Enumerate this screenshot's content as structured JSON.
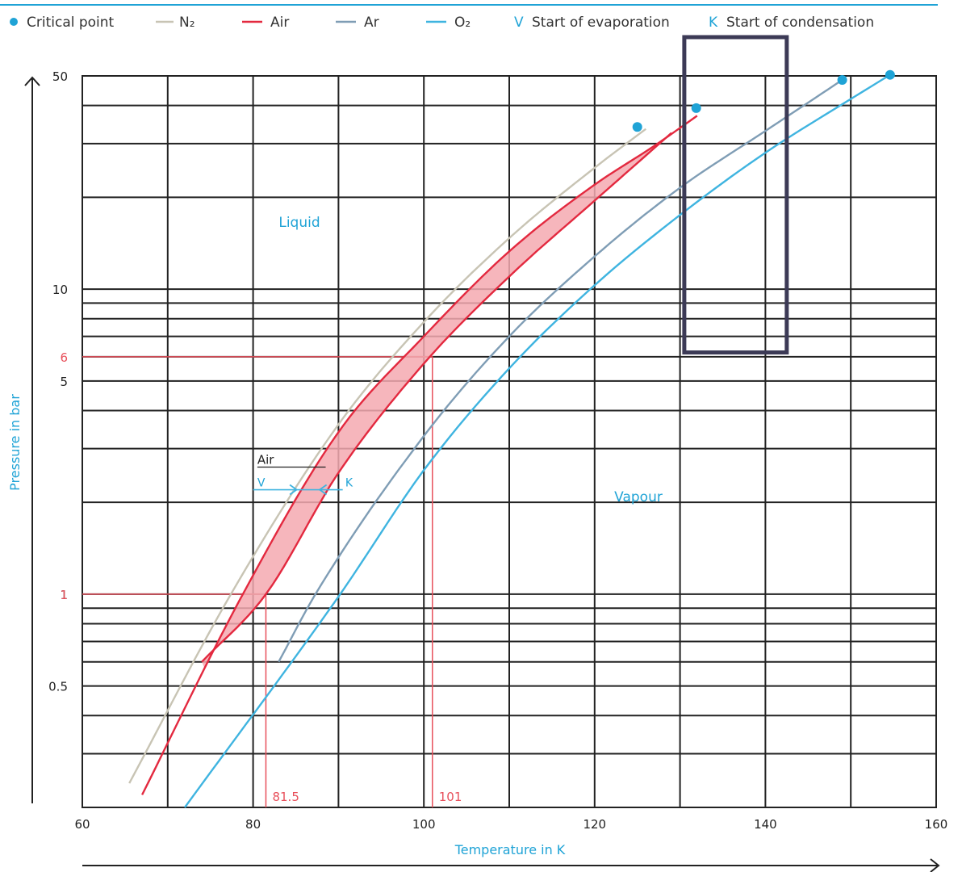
{
  "chart_data": {
    "type": "line",
    "xlabel": "Temperature in K",
    "ylabel": "Pressure in bar",
    "xlim": [
      60,
      160
    ],
    "ylim": [
      0.2,
      50
    ],
    "y_scale": "log",
    "x_ticks": [
      "60",
      "80",
      "100",
      "120",
      "140",
      "160"
    ],
    "y_ticks": [
      "50",
      "10",
      "5",
      "1",
      "0.5"
    ],
    "red_y_ticks": [
      "6",
      "1"
    ],
    "grid": true,
    "legend_position": "top",
    "legend": {
      "critical_point": "Critical point",
      "n2": "N₂",
      "air": "Air",
      "ar": "Ar",
      "o2": "O₂",
      "evap_symbol": "V",
      "evap_label": "Start of evaporation",
      "cond_symbol": "K",
      "cond_label": "Start of condensation"
    },
    "colors": {
      "n2": "#c8c4b4",
      "air": "#e3293f",
      "air_band": "#f4a9b0",
      "ar": "#7f9db5",
      "o2": "#3fb4e0",
      "critical_point": "#1fa3d6",
      "marker": "#e8505b",
      "highlight_box": "#3c3a56"
    },
    "series": [
      {
        "name": "N₂",
        "points": [
          [
            65.5,
            0.24
          ],
          [
            77.4,
            1.0
          ],
          [
            90,
            3.6
          ],
          [
            100,
            7.8
          ],
          [
            110,
            14.7
          ],
          [
            120,
            25
          ],
          [
            126,
            33.5
          ]
        ]
      },
      {
        "name": "Air",
        "points": [
          [
            67,
            0.22
          ],
          [
            78.8,
            1.0
          ],
          [
            90,
            3.4
          ],
          [
            100,
            7.0
          ],
          [
            110,
            13.3
          ],
          [
            120,
            22
          ],
          [
            127,
            29.5
          ],
          [
            132,
            37.0
          ]
        ]
      },
      {
        "name": "Air",
        "points": [
          [
            74,
            0.6
          ],
          [
            81.5,
            1.0
          ],
          [
            90,
            2.5
          ],
          [
            100,
            5.7
          ],
          [
            110,
            11.0
          ],
          [
            120,
            19.5
          ],
          [
            129,
            32.5
          ]
        ]
      },
      {
        "name": "Ar",
        "points": [
          [
            83,
            0.6
          ],
          [
            87.3,
            1.0
          ],
          [
            100,
            3.3
          ],
          [
            110,
            7.0
          ],
          [
            120,
            12.8
          ],
          [
            130,
            21.5
          ],
          [
            140,
            33.0
          ],
          [
            149,
            48.5
          ]
        ]
      },
      {
        "name": "O₂",
        "points": [
          [
            72,
            0.2
          ],
          [
            90.2,
            1.0
          ],
          [
            100,
            2.55
          ],
          [
            110,
            5.5
          ],
          [
            120,
            10.3
          ],
          [
            130,
            17.5
          ],
          [
            140,
            28.0
          ],
          [
            150,
            42.0
          ],
          [
            154.6,
            50.4
          ]
        ]
      }
    ],
    "critical_points": [
      [
        125,
        34
      ],
      [
        131.9,
        39.2
      ],
      [
        149,
        48.5
      ],
      [
        154.6,
        50.4
      ]
    ],
    "region_labels": {
      "liquid": "Liquid",
      "vapour": "Vapour"
    },
    "reference_lines": [
      {
        "pressure": 6,
        "temperature": 101,
        "label": "101"
      },
      {
        "pressure": 1,
        "temperature": 81.5,
        "label": "81.5"
      }
    ],
    "air_annotation": {
      "label": "Air",
      "v": "V",
      "k": "K",
      "pressure": 2.2
    },
    "highlight_box": {
      "x_range": [
        130.5,
        142.5
      ],
      "y_range": [
        6.2,
        50
      ]
    }
  }
}
